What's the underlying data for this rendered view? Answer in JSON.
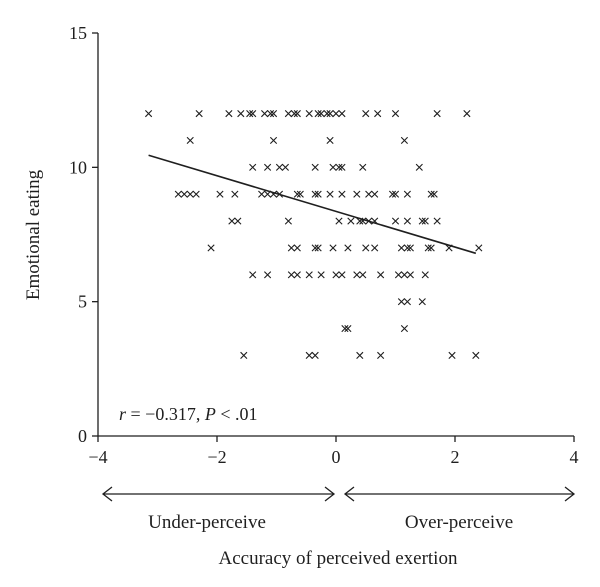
{
  "chart_data": {
    "type": "scatter",
    "title": "",
    "xlabel": "Accuracy of perceived exertion",
    "ylabel": "Emotional eating",
    "xlim": [
      -4,
      4
    ],
    "ylim": [
      0,
      15
    ],
    "xticks": [
      -4,
      -2,
      0,
      2,
      4
    ],
    "yticks": [
      0,
      5,
      10,
      15
    ],
    "x_tick_labels": [
      "−4",
      "−2",
      "0",
      "2",
      "4"
    ],
    "y_tick_labels": [
      "0",
      "5",
      "10",
      "15"
    ],
    "grid": false,
    "legend": "none",
    "marker": "x",
    "marker_color": "#1f1f1f",
    "annotation": {
      "r_symbol": "r",
      "r_text": " = −0.317, ",
      "p_symbol": "P",
      "p_text": " < .01"
    },
    "direction_labels": {
      "left": "Under-perceive",
      "right": "Over-perceive"
    },
    "trend_line": {
      "x": [
        -3.15,
        2.35
      ],
      "y": [
        10.45,
        6.8
      ]
    },
    "points": [
      {
        "x": -3.15,
        "y": 12
      },
      {
        "x": -2.3,
        "y": 12
      },
      {
        "x": -1.8,
        "y": 12
      },
      {
        "x": -1.6,
        "y": 12
      },
      {
        "x": -1.45,
        "y": 12
      },
      {
        "x": -1.4,
        "y": 12
      },
      {
        "x": -1.2,
        "y": 12
      },
      {
        "x": -1.1,
        "y": 12
      },
      {
        "x": -1.05,
        "y": 12
      },
      {
        "x": -0.8,
        "y": 12
      },
      {
        "x": -0.7,
        "y": 12
      },
      {
        "x": -0.65,
        "y": 12
      },
      {
        "x": -0.45,
        "y": 12
      },
      {
        "x": -0.3,
        "y": 12
      },
      {
        "x": -0.25,
        "y": 12
      },
      {
        "x": -0.15,
        "y": 12
      },
      {
        "x": -0.1,
        "y": 12
      },
      {
        "x": 0,
        "y": 12
      },
      {
        "x": 0.1,
        "y": 12
      },
      {
        "x": 0.5,
        "y": 12
      },
      {
        "x": 0.7,
        "y": 12
      },
      {
        "x": 1,
        "y": 12
      },
      {
        "x": 1.7,
        "y": 12
      },
      {
        "x": 2.2,
        "y": 12
      },
      {
        "x": -2.45,
        "y": 11
      },
      {
        "x": -1.05,
        "y": 11
      },
      {
        "x": -0.1,
        "y": 11
      },
      {
        "x": 1.15,
        "y": 11
      },
      {
        "x": -1.4,
        "y": 10
      },
      {
        "x": -1.15,
        "y": 10
      },
      {
        "x": -0.95,
        "y": 10
      },
      {
        "x": -0.85,
        "y": 10
      },
      {
        "x": -0.35,
        "y": 10
      },
      {
        "x": -0.05,
        "y": 10
      },
      {
        "x": 0.05,
        "y": 10
      },
      {
        "x": 0.1,
        "y": 10
      },
      {
        "x": 0.45,
        "y": 10
      },
      {
        "x": 1.4,
        "y": 10
      },
      {
        "x": -2.65,
        "y": 9
      },
      {
        "x": -2.55,
        "y": 9
      },
      {
        "x": -2.45,
        "y": 9
      },
      {
        "x": -2.35,
        "y": 9
      },
      {
        "x": -1.95,
        "y": 9
      },
      {
        "x": -1.7,
        "y": 9
      },
      {
        "x": -1.25,
        "y": 9
      },
      {
        "x": -1.15,
        "y": 9
      },
      {
        "x": -1.05,
        "y": 9
      },
      {
        "x": -0.95,
        "y": 9
      },
      {
        "x": -0.65,
        "y": 9
      },
      {
        "x": -0.6,
        "y": 9
      },
      {
        "x": -0.35,
        "y": 9
      },
      {
        "x": -0.3,
        "y": 9
      },
      {
        "x": -0.1,
        "y": 9
      },
      {
        "x": 0.1,
        "y": 9
      },
      {
        "x": 0.35,
        "y": 9
      },
      {
        "x": 0.55,
        "y": 9
      },
      {
        "x": 0.65,
        "y": 9
      },
      {
        "x": 0.95,
        "y": 9
      },
      {
        "x": 1,
        "y": 9
      },
      {
        "x": 1.2,
        "y": 9
      },
      {
        "x": 1.6,
        "y": 9
      },
      {
        "x": 1.65,
        "y": 9
      },
      {
        "x": -1.75,
        "y": 8
      },
      {
        "x": -1.65,
        "y": 8
      },
      {
        "x": -0.8,
        "y": 8
      },
      {
        "x": 0.05,
        "y": 8
      },
      {
        "x": 0.25,
        "y": 8
      },
      {
        "x": 0.4,
        "y": 8
      },
      {
        "x": 0.45,
        "y": 8
      },
      {
        "x": 0.55,
        "y": 8
      },
      {
        "x": 0.65,
        "y": 8
      },
      {
        "x": 1,
        "y": 8
      },
      {
        "x": 1.2,
        "y": 8
      },
      {
        "x": 1.45,
        "y": 8
      },
      {
        "x": 1.5,
        "y": 8
      },
      {
        "x": 1.7,
        "y": 8
      },
      {
        "x": -2.1,
        "y": 7
      },
      {
        "x": -0.75,
        "y": 7
      },
      {
        "x": -0.65,
        "y": 7
      },
      {
        "x": -0.35,
        "y": 7
      },
      {
        "x": -0.3,
        "y": 7
      },
      {
        "x": -0.05,
        "y": 7
      },
      {
        "x": 0.2,
        "y": 7
      },
      {
        "x": 0.5,
        "y": 7
      },
      {
        "x": 0.65,
        "y": 7
      },
      {
        "x": 1.1,
        "y": 7
      },
      {
        "x": 1.2,
        "y": 7
      },
      {
        "x": 1.25,
        "y": 7
      },
      {
        "x": 1.55,
        "y": 7
      },
      {
        "x": 1.6,
        "y": 7
      },
      {
        "x": 1.9,
        "y": 7
      },
      {
        "x": 2.4,
        "y": 7
      },
      {
        "x": -1.4,
        "y": 6
      },
      {
        "x": -1.15,
        "y": 6
      },
      {
        "x": -0.75,
        "y": 6
      },
      {
        "x": -0.65,
        "y": 6
      },
      {
        "x": -0.45,
        "y": 6
      },
      {
        "x": -0.25,
        "y": 6
      },
      {
        "x": 0,
        "y": 6
      },
      {
        "x": 0.1,
        "y": 6
      },
      {
        "x": 0.35,
        "y": 6
      },
      {
        "x": 0.45,
        "y": 6
      },
      {
        "x": 0.75,
        "y": 6
      },
      {
        "x": 1.05,
        "y": 6
      },
      {
        "x": 1.15,
        "y": 6
      },
      {
        "x": 1.25,
        "y": 6
      },
      {
        "x": 1.5,
        "y": 6
      },
      {
        "x": 1.1,
        "y": 5
      },
      {
        "x": 1.2,
        "y": 5
      },
      {
        "x": 1.45,
        "y": 5
      },
      {
        "x": 0.15,
        "y": 4
      },
      {
        "x": 0.2,
        "y": 4
      },
      {
        "x": 1.15,
        "y": 4
      },
      {
        "x": -1.55,
        "y": 3
      },
      {
        "x": -0.45,
        "y": 3
      },
      {
        "x": -0.35,
        "y": 3
      },
      {
        "x": 0.4,
        "y": 3
      },
      {
        "x": 0.75,
        "y": 3
      },
      {
        "x": 1.95,
        "y": 3
      },
      {
        "x": 2.35,
        "y": 3
      }
    ]
  }
}
